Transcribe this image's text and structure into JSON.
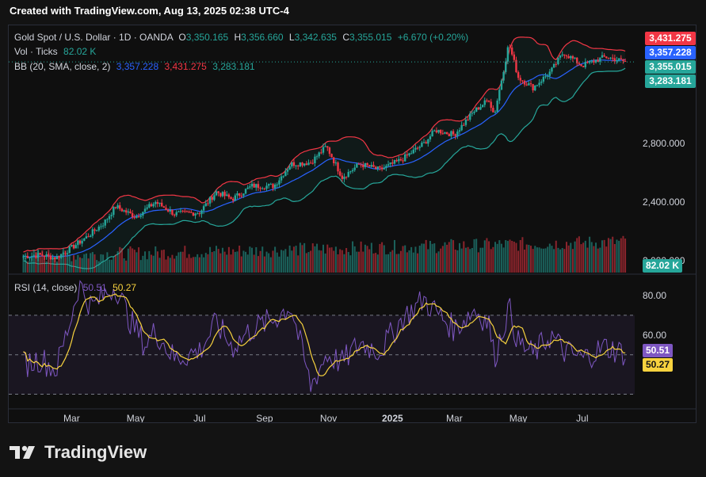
{
  "caption": "Created with TradingView.com, Aug 13, 2025 02:38 UTC-4",
  "brand": {
    "name": "TradingView",
    "logo_icon": "tradingview-logo-icon"
  },
  "legend": {
    "symbol": "Gold Spot / U.S. Dollar · 1D · OANDA",
    "o_label": "O",
    "o": "3,350.165",
    "h_label": "H",
    "h": "3,356.660",
    "l_label": "L",
    "l": "3,342.635",
    "c_label": "C",
    "c": "3,355.015",
    "change": "+6.670 (+0.20%)",
    "vol_label": "Vol · Ticks",
    "vol": "82.02 K",
    "bb_label": "BB (20, SMA, close, 2)",
    "bb_basis": "3,357.228",
    "bb_upper": "3,431.275",
    "bb_lower": "3,283.181",
    "rsi_label": "RSI (14, close)",
    "rsi": "50.51",
    "rsi_ma": "50.27"
  },
  "price_tags": {
    "upper": "3,431.275",
    "basis": "3,357.228",
    "close": "3,355.015",
    "lower": "3,283.181",
    "volume": "82.02 K",
    "rsi": "50.51",
    "rsi_ma": "50.27"
  },
  "colors": {
    "up": "#26a69a",
    "down": "#f23645",
    "bb_upper": "#f23645",
    "bb_basis": "#2962ff",
    "bb_lower": "#26a69a",
    "rsi": "#7e57c2",
    "rsi_ma": "#f7d23e",
    "bg": "#0f0f0f"
  },
  "chart_data": {
    "type": "candlestick",
    "title": "Gold Spot / U.S. Dollar · 1D · OANDA",
    "price_axis": {
      "ticks": [
        2000,
        2400,
        2800
      ],
      "tick_labels": [
        "2,000.000",
        "2,400.000",
        "2,800.000"
      ],
      "ylim": [
        1920,
        3550
      ]
    },
    "x_tick_labels": [
      "Mar",
      "May",
      "Jul",
      "Sep",
      "Nov",
      "2025",
      "Mar",
      "May",
      "Jul"
    ],
    "price_series": {
      "name": "XAUUSD close",
      "x": [
        "2024-01-15",
        "2024-02-01",
        "2024-02-15",
        "2024-03-01",
        "2024-03-15",
        "2024-04-01",
        "2024-04-12",
        "2024-05-01",
        "2024-05-20",
        "2024-06-07",
        "2024-07-01",
        "2024-07-17",
        "2024-08-01",
        "2024-08-20",
        "2024-09-10",
        "2024-09-26",
        "2024-10-15",
        "2024-10-30",
        "2024-11-14",
        "2024-12-01",
        "2024-12-20",
        "2025-01-10",
        "2025-01-31",
        "2025-02-11",
        "2025-03-01",
        "2025-03-20",
        "2025-04-03",
        "2025-04-08",
        "2025-04-22",
        "2025-05-01",
        "2025-05-15",
        "2025-06-01",
        "2025-06-13",
        "2025-07-01",
        "2025-07-23",
        "2025-08-12"
      ],
      "close": [
        2030,
        2040,
        2020,
        2090,
        2160,
        2260,
        2370,
        2300,
        2400,
        2320,
        2330,
        2470,
        2420,
        2510,
        2510,
        2660,
        2670,
        2780,
        2570,
        2660,
        2620,
        2690,
        2800,
        2890,
        2860,
        3020,
        3100,
        2990,
        3480,
        3250,
        3180,
        3290,
        3420,
        3330,
        3390,
        3355
      ]
    },
    "bollinger_bands": {
      "period": 20,
      "source": "close",
      "stddev": 2,
      "last": {
        "upper": 3431.275,
        "basis": 3357.228,
        "lower": 3283.181
      }
    },
    "volume": {
      "unit": "ticks",
      "last": "82.02 K"
    },
    "rsi": {
      "period": 14,
      "source": "close",
      "axis_ticks": [
        60,
        80
      ],
      "tick_labels": [
        "60.00",
        "80.00"
      ],
      "bands": [
        30,
        50,
        70
      ],
      "ylim": [
        25,
        90
      ],
      "x": [
        "2024-01-15",
        "2024-02-01",
        "2024-02-15",
        "2024-03-01",
        "2024-03-08",
        "2024-03-20",
        "2024-04-05",
        "2024-04-12",
        "2024-04-25",
        "2024-05-10",
        "2024-05-20",
        "2024-06-07",
        "2024-07-01",
        "2024-07-17",
        "2024-08-01",
        "2024-08-20",
        "2024-09-10",
        "2024-09-26",
        "2024-10-15",
        "2024-10-30",
        "2024-11-14",
        "2024-12-01",
        "2024-12-20",
        "2025-01-10",
        "2025-01-31",
        "2025-02-11",
        "2025-03-01",
        "2025-03-20",
        "2025-04-03",
        "2025-04-08",
        "2025-04-22",
        "2025-05-01",
        "2025-05-15",
        "2025-06-01",
        "2025-06-13",
        "2025-07-01",
        "2025-07-23",
        "2025-08-12"
      ],
      "values": [
        45,
        48,
        42,
        70,
        86,
        74,
        82,
        85,
        68,
        55,
        62,
        48,
        52,
        66,
        54,
        63,
        68,
        75,
        34,
        50,
        46,
        56,
        52,
        68,
        78,
        72,
        63,
        73,
        66,
        48,
        74,
        56,
        50,
        60,
        52,
        48,
        54,
        50.51
      ],
      "ma_last": 50.27
    }
  }
}
